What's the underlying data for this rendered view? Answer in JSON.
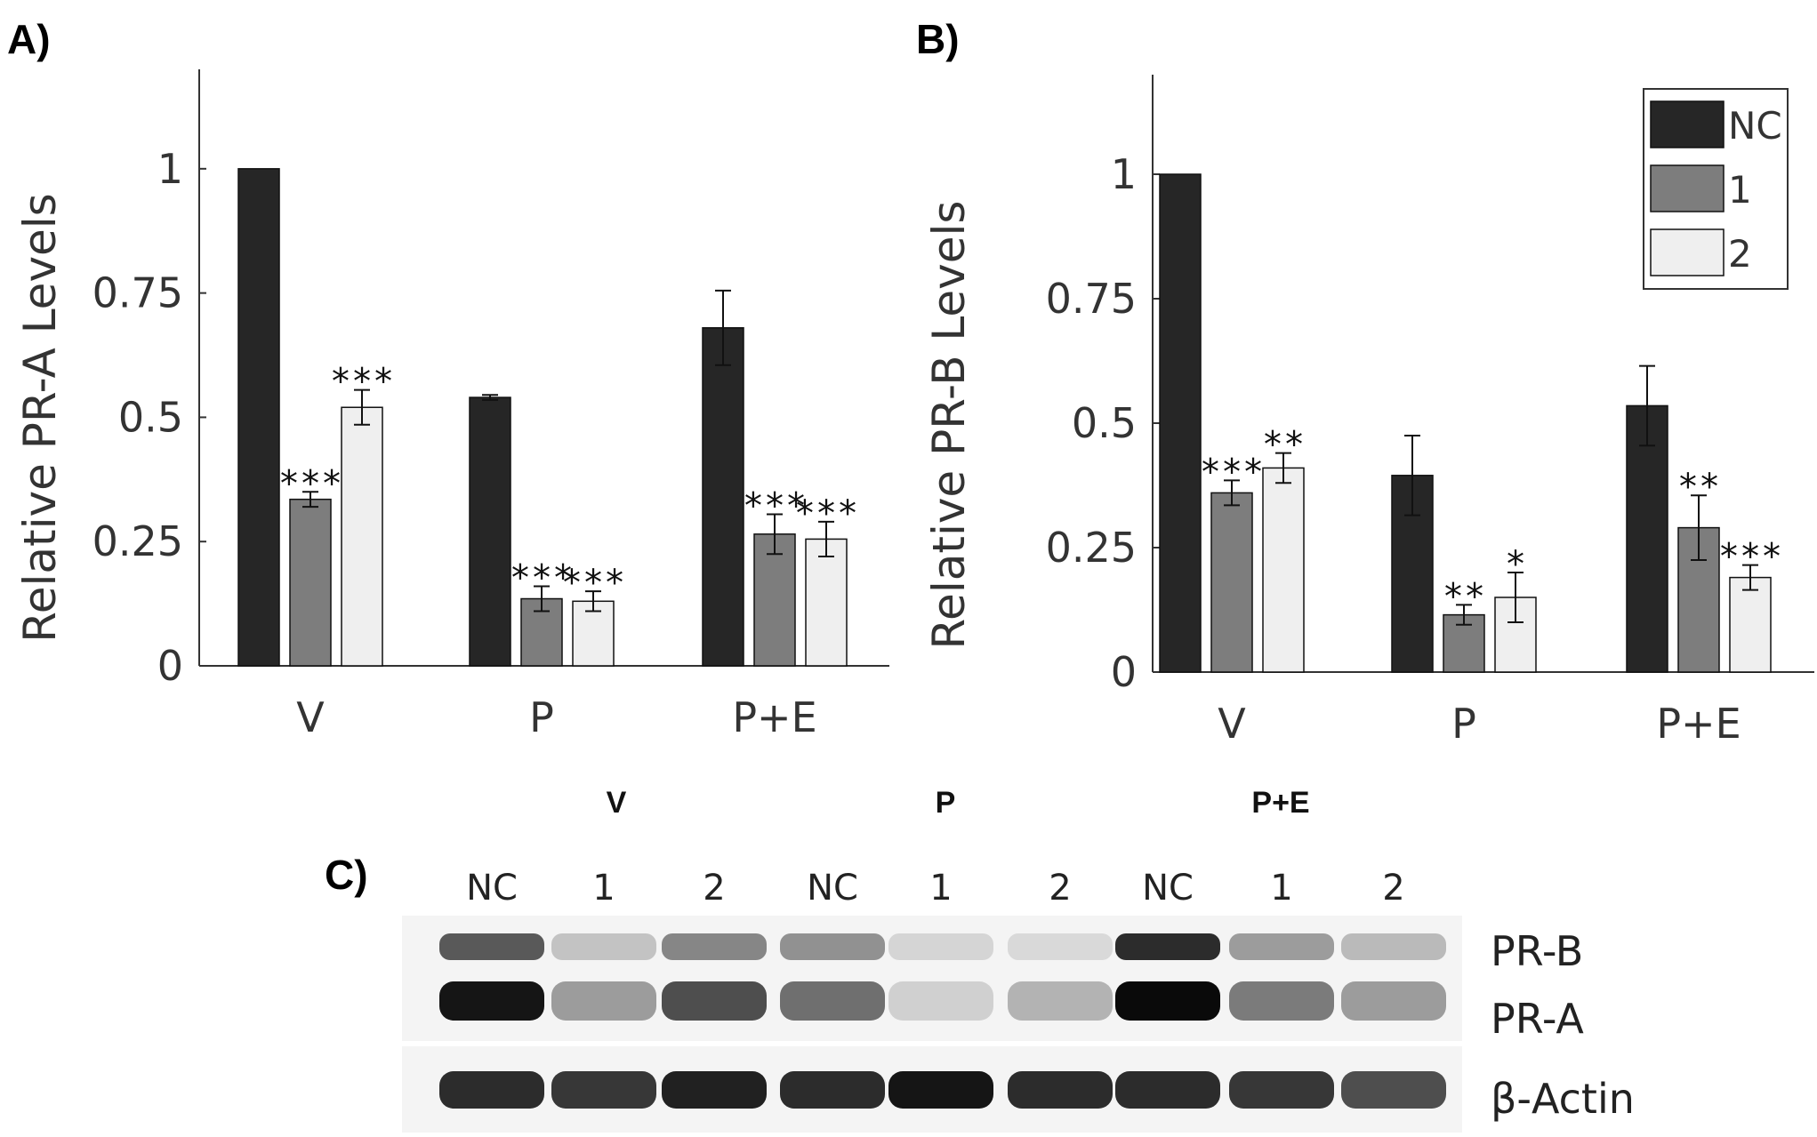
{
  "panels": {
    "a": "A)",
    "b": "B)",
    "c": "C)"
  },
  "colors": {
    "nc": "#262626",
    "g1": "#7d7d7d",
    "g2": "#efefef",
    "axis": "#333333"
  },
  "legend": {
    "entries": [
      "NC",
      "1",
      "2"
    ]
  },
  "chart_data": [
    {
      "type": "bar",
      "panel": "A)",
      "ylabel": "Relative PR-A Levels",
      "xlabel": "",
      "categories": [
        "V",
        "P",
        "P+E"
      ],
      "ylim": [
        0,
        1.2
      ],
      "yticks": [
        0,
        0.25,
        0.5,
        0.75,
        1
      ],
      "ytick_labels": [
        "0",
        "0.25",
        "0.5",
        "0.75",
        "1"
      ],
      "series": [
        {
          "name": "NC",
          "values": [
            1.0,
            0.54,
            0.68
          ],
          "errors": [
            0,
            0.005,
            0.075
          ],
          "stars": [
            "",
            "",
            ""
          ]
        },
        {
          "name": "1",
          "values": [
            0.335,
            0.135,
            0.265
          ],
          "errors": [
            0.015,
            0.025,
            0.04
          ],
          "stars": [
            "***",
            "***",
            "***"
          ]
        },
        {
          "name": "2",
          "values": [
            0.52,
            0.13,
            0.255
          ],
          "errors": [
            0.035,
            0.02,
            0.035
          ],
          "stars": [
            "***",
            "***",
            "***"
          ]
        }
      ]
    },
    {
      "type": "bar",
      "panel": "B)",
      "ylabel": "Relative PR-B Levels",
      "xlabel": "",
      "categories": [
        "V",
        "P",
        "P+E"
      ],
      "ylim": [
        0,
        1.2
      ],
      "yticks": [
        0,
        0.25,
        0.5,
        0.75,
        1
      ],
      "ytick_labels": [
        "0",
        "0.25",
        "0.5",
        "0.75",
        "1"
      ],
      "series": [
        {
          "name": "NC",
          "values": [
            1.0,
            0.395,
            0.535
          ],
          "errors": [
            0,
            0.08,
            0.08
          ],
          "stars": [
            "",
            "",
            ""
          ]
        },
        {
          "name": "1",
          "values": [
            0.36,
            0.115,
            0.29
          ],
          "errors": [
            0.025,
            0.02,
            0.065
          ],
          "stars": [
            "***",
            "**",
            "**"
          ]
        },
        {
          "name": "2",
          "values": [
            0.41,
            0.15,
            0.19
          ],
          "errors": [
            0.03,
            0.05,
            0.025
          ],
          "stars": [
            "**",
            "*",
            "***"
          ]
        }
      ]
    }
  ],
  "blot": {
    "group_headers": [
      "V",
      "P",
      "P+E"
    ],
    "lanes": [
      "NC",
      "1",
      "2",
      "NC",
      "1",
      "2",
      "NC",
      "1",
      "2"
    ],
    "band_labels": [
      "PR-B",
      "PR-A",
      "β-Actin"
    ],
    "pr_b_intensity": [
      0.65,
      0.18,
      0.45,
      0.4,
      0.1,
      0.08,
      0.85,
      0.35,
      0.22
    ],
    "pr_a_intensity": [
      0.95,
      0.35,
      0.7,
      0.55,
      0.12,
      0.25,
      1.0,
      0.5,
      0.35
    ],
    "actin_intensity": [
      0.85,
      0.8,
      0.9,
      0.85,
      0.95,
      0.85,
      0.85,
      0.8,
      0.7
    ]
  }
}
